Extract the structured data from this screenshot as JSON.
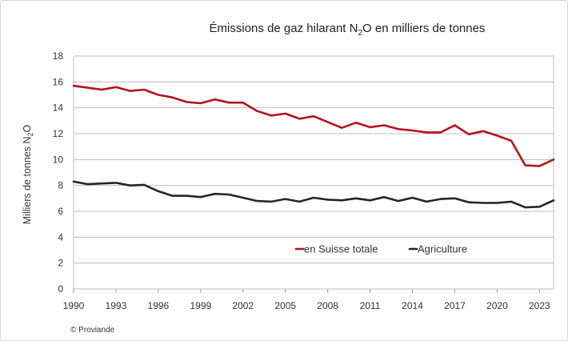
{
  "chart_data": {
    "type": "line",
    "title": {
      "before": "Émissions de gaz hilarant N",
      "sub": "2",
      "after": "O en milliers de tonnes"
    },
    "ylabel": {
      "before": "Milliers de tonnes N",
      "sub": "2",
      "after": "O"
    },
    "xlabel": "",
    "ylim": [
      0,
      18
    ],
    "yticks": [
      0,
      2,
      4,
      6,
      8,
      10,
      12,
      14,
      16,
      18
    ],
    "xlim": [
      1990,
      2024
    ],
    "xticks": [
      1990,
      1993,
      1996,
      1999,
      2002,
      2005,
      2008,
      2011,
      2014,
      2017,
      2020,
      2023
    ],
    "grid": "horizontal",
    "legend_position": "bottom-right inside",
    "x": [
      1990,
      1991,
      1992,
      1993,
      1994,
      1995,
      1996,
      1997,
      1998,
      1999,
      2000,
      2001,
      2002,
      2003,
      2004,
      2005,
      2006,
      2007,
      2008,
      2009,
      2010,
      2011,
      2012,
      2013,
      2014,
      2015,
      2016,
      2017,
      2018,
      2019,
      2020,
      2021,
      2022,
      2023,
      2024
    ],
    "series": [
      {
        "name": "en Suisse totale",
        "color": "#b5121b",
        "values": [
          15.7,
          15.55,
          15.4,
          15.6,
          15.3,
          15.4,
          15.0,
          14.8,
          14.45,
          14.35,
          14.65,
          14.4,
          14.4,
          13.75,
          13.4,
          13.55,
          13.15,
          13.35,
          12.9,
          12.45,
          12.85,
          12.5,
          12.65,
          12.35,
          12.25,
          12.1,
          12.1,
          12.65,
          11.95,
          12.2,
          11.85,
          11.45,
          9.55,
          9.5,
          10.0
        ]
      },
      {
        "name": "Agriculture",
        "color": "#2b2420",
        "values": [
          8.3,
          8.1,
          8.15,
          8.2,
          8.0,
          8.05,
          7.55,
          7.2,
          7.2,
          7.1,
          7.35,
          7.3,
          7.05,
          6.8,
          6.75,
          6.95,
          6.75,
          7.05,
          6.9,
          6.85,
          7.0,
          6.85,
          7.1,
          6.8,
          7.05,
          6.75,
          6.95,
          7.0,
          6.7,
          6.65,
          6.65,
          6.75,
          6.3,
          6.35,
          6.85
        ]
      }
    ]
  },
  "source": "© Proviande"
}
